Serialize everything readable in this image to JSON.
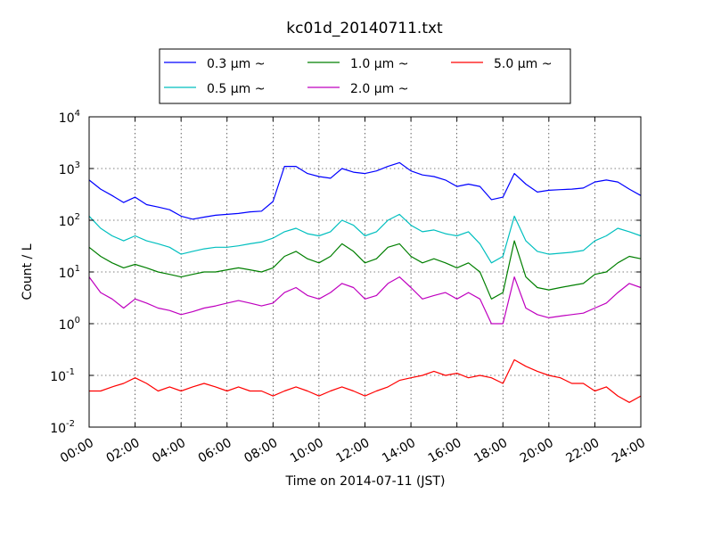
{
  "chart_data": {
    "type": "line",
    "title": "kc01d_20140711.txt",
    "xlabel": "Time on 2014-07-11 (JST)",
    "ylabel": "Count / L",
    "yscale": "log",
    "ylim": [
      0.01,
      10000
    ],
    "xlim": [
      "00:00",
      "24:00"
    ],
    "x_ticks": [
      "00:00",
      "02:00",
      "04:00",
      "06:00",
      "08:00",
      "10:00",
      "12:00",
      "14:00",
      "16:00",
      "18:00",
      "20:00",
      "22:00",
      "24:00"
    ],
    "y_ticks": [
      {
        "value": 0.01,
        "mant": "10",
        "exp": "-2"
      },
      {
        "value": 0.1,
        "mant": "10",
        "exp": "-1"
      },
      {
        "value": 1,
        "mant": "10",
        "exp": "0"
      },
      {
        "value": 10,
        "mant": "10",
        "exp": "1"
      },
      {
        "value": 100,
        "mant": "10",
        "exp": "2"
      },
      {
        "value": 1000,
        "mant": "10",
        "exp": "3"
      },
      {
        "value": 10000,
        "mant": "10",
        "exp": "4"
      }
    ],
    "grid": true,
    "legend_position": "top-center",
    "x_hours": [
      0,
      0.5,
      1,
      1.5,
      2,
      2.5,
      3,
      3.5,
      4,
      4.5,
      5,
      5.5,
      6,
      6.5,
      7,
      7.5,
      8,
      8.5,
      9,
      9.5,
      10,
      10.5,
      11,
      11.5,
      12,
      12.5,
      13,
      13.5,
      14,
      14.5,
      15,
      15.5,
      16,
      16.5,
      17,
      17.5,
      18,
      18.5,
      19,
      19.5,
      20,
      20.5,
      21,
      21.5,
      22,
      22.5,
      23,
      23.5,
      24
    ],
    "series": [
      {
        "name": "0.3 μm ~",
        "color": "#0000ff",
        "values": [
          600,
          400,
          300,
          220,
          280,
          200,
          180,
          160,
          120,
          105,
          115,
          125,
          130,
          135,
          145,
          150,
          230,
          1100,
          1100,
          800,
          700,
          650,
          1000,
          850,
          800,
          900,
          1100,
          1300,
          900,
          750,
          700,
          600,
          450,
          500,
          450,
          250,
          280,
          800,
          500,
          350,
          380,
          390,
          400,
          420,
          550,
          600,
          550,
          400,
          300
        ]
      },
      {
        "name": "0.5 μm ~",
        "color": "#00bfbf",
        "values": [
          120,
          70,
          50,
          40,
          50,
          40,
          35,
          30,
          22,
          25,
          28,
          30,
          30,
          32,
          35,
          38,
          45,
          60,
          70,
          55,
          50,
          60,
          100,
          80,
          50,
          60,
          100,
          130,
          80,
          60,
          65,
          55,
          50,
          60,
          35,
          15,
          20,
          120,
          40,
          25,
          22,
          23,
          24,
          26,
          40,
          50,
          70,
          60,
          50
        ]
      },
      {
        "name": "1.0 μm ~",
        "color": "#007f00",
        "values": [
          30,
          20,
          15,
          12,
          14,
          12,
          10,
          9,
          8,
          9,
          10,
          10,
          11,
          12,
          11,
          10,
          12,
          20,
          25,
          18,
          15,
          20,
          35,
          25,
          15,
          18,
          30,
          35,
          20,
          15,
          18,
          15,
          12,
          15,
          10,
          3,
          4,
          40,
          8,
          5,
          4.5,
          5,
          5.5,
          6,
          9,
          10,
          15,
          20,
          18
        ]
      },
      {
        "name": "2.0 μm ~",
        "color": "#bf00bf",
        "values": [
          8,
          4,
          3,
          2,
          3,
          2.5,
          2,
          1.8,
          1.5,
          1.7,
          2,
          2.2,
          2.5,
          2.8,
          2.5,
          2.2,
          2.5,
          4,
          5,
          3.5,
          3,
          4,
          6,
          5,
          3,
          3.5,
          6,
          8,
          5,
          3,
          3.5,
          4,
          3,
          4,
          3,
          1,
          1,
          8,
          2,
          1.5,
          1.3,
          1.4,
          1.5,
          1.6,
          2,
          2.5,
          4,
          6,
          5
        ]
      },
      {
        "name": "5.0 μm ~",
        "color": "#ff0000",
        "values": [
          0.05,
          0.05,
          0.06,
          0.07,
          0.09,
          0.07,
          0.05,
          0.06,
          0.05,
          0.06,
          0.07,
          0.06,
          0.05,
          0.06,
          0.05,
          0.05,
          0.04,
          0.05,
          0.06,
          0.05,
          0.04,
          0.05,
          0.06,
          0.05,
          0.04,
          0.05,
          0.06,
          0.08,
          0.09,
          0.1,
          0.12,
          0.1,
          0.11,
          0.09,
          0.1,
          0.09,
          0.07,
          0.2,
          0.15,
          0.12,
          0.1,
          0.09,
          0.07,
          0.07,
          0.05,
          0.06,
          0.04,
          0.03,
          0.04
        ]
      }
    ]
  }
}
